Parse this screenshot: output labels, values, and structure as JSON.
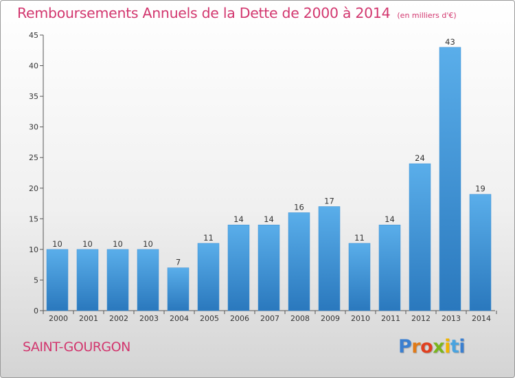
{
  "header": {
    "title": "Remboursements Annuels de la Dette de 2000 à 2014",
    "unit": "(en milliers d'€)"
  },
  "commune": "SAINT-GOURGON",
  "logo": {
    "letters": [
      "P",
      "r",
      "o",
      "x",
      "i",
      "t",
      "i"
    ]
  },
  "colors": {
    "bar": "#4a9ee0",
    "bar_dark": "#2f7fc4",
    "title": "#d2366e"
  },
  "chart_data": {
    "type": "bar",
    "title": "Remboursements Annuels de la Dette de 2000 à 2014",
    "categories": [
      "2000",
      "2001",
      "2002",
      "2003",
      "2004",
      "2005",
      "2006",
      "2007",
      "2008",
      "2009",
      "2010",
      "2011",
      "2012",
      "2013",
      "2014"
    ],
    "values": [
      10,
      10,
      10,
      10,
      7,
      11,
      14,
      14,
      16,
      17,
      11,
      14,
      24,
      43,
      19
    ],
    "ylim": [
      0,
      45
    ],
    "yticks": [
      0,
      5,
      10,
      15,
      20,
      25,
      30,
      35,
      40,
      45
    ],
    "grid": false,
    "legend": "none"
  }
}
